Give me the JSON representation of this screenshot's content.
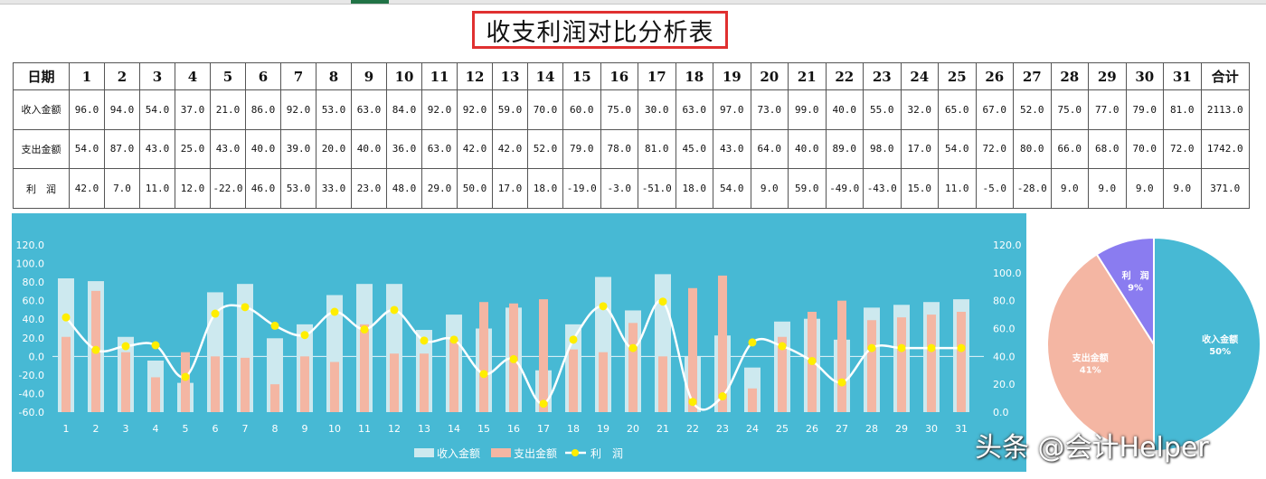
{
  "title": "收支利润对比分析表",
  "table": {
    "header_label": "日期",
    "days": [
      "1",
      "2",
      "3",
      "4",
      "5",
      "6",
      "7",
      "8",
      "9",
      "10",
      "11",
      "12",
      "13",
      "14",
      "15",
      "16",
      "17",
      "18",
      "19",
      "20",
      "21",
      "22",
      "23",
      "24",
      "25",
      "26",
      "27",
      "28",
      "29",
      "30",
      "31"
    ],
    "total_label": "合计",
    "rows": [
      {
        "label": "收入金额",
        "values": [
          "96.0",
          "94.0",
          "54.0",
          "37.0",
          "21.0",
          "86.0",
          "92.0",
          "53.0",
          "63.0",
          "84.0",
          "92.0",
          "92.0",
          "59.0",
          "70.0",
          "60.0",
          "75.0",
          "30.0",
          "63.0",
          "97.0",
          "73.0",
          "99.0",
          "40.0",
          "55.0",
          "32.0",
          "65.0",
          "67.0",
          "52.0",
          "75.0",
          "77.0",
          "79.0",
          "81.0"
        ],
        "total": "2113.0"
      },
      {
        "label": "支出金额",
        "values": [
          "54.0",
          "87.0",
          "43.0",
          "25.0",
          "43.0",
          "40.0",
          "39.0",
          "20.0",
          "40.0",
          "36.0",
          "63.0",
          "42.0",
          "42.0",
          "52.0",
          "79.0",
          "78.0",
          "81.0",
          "45.0",
          "43.0",
          "64.0",
          "40.0",
          "89.0",
          "98.0",
          "17.0",
          "54.0",
          "72.0",
          "80.0",
          "66.0",
          "68.0",
          "70.0",
          "72.0"
        ],
        "total": "1742.0"
      },
      {
        "label": "利　润",
        "values": [
          "42.0",
          "7.0",
          "11.0",
          "12.0",
          "-22.0",
          "46.0",
          "53.0",
          "33.0",
          "23.0",
          "48.0",
          "29.0",
          "50.0",
          "17.0",
          "18.0",
          "-19.0",
          "-3.0",
          "-51.0",
          "18.0",
          "54.0",
          "9.0",
          "59.0",
          "-49.0",
          "-43.0",
          "15.0",
          "11.0",
          "-5.0",
          "-28.0",
          "9.0",
          "9.0",
          "9.0",
          "9.0"
        ],
        "total": "371.0"
      }
    ]
  },
  "chart_data": [
    {
      "type": "bar",
      "categories": [
        "1",
        "2",
        "3",
        "4",
        "5",
        "6",
        "7",
        "8",
        "9",
        "10",
        "11",
        "12",
        "13",
        "14",
        "15",
        "16",
        "17",
        "18",
        "19",
        "20",
        "21",
        "22",
        "23",
        "24",
        "25",
        "26",
        "27",
        "28",
        "29",
        "30",
        "31"
      ],
      "series": [
        {
          "name": "收入金额",
          "values": [
            96,
            94,
            54,
            37,
            21,
            86,
            92,
            53,
            63,
            84,
            92,
            92,
            59,
            70,
            60,
            75,
            30,
            63,
            97,
            73,
            99,
            40,
            55,
            32,
            65,
            67,
            52,
            75,
            77,
            79,
            81
          ],
          "axis": "right",
          "color": "#cde9ef"
        },
        {
          "name": "支出金额",
          "values": [
            54,
            87,
            43,
            25,
            43,
            40,
            39,
            20,
            40,
            36,
            63,
            42,
            42,
            52,
            79,
            78,
            81,
            45,
            43,
            64,
            40,
            89,
            98,
            17,
            54,
            72,
            80,
            66,
            68,
            70,
            72
          ],
          "axis": "right",
          "color": "#f4b6a3"
        },
        {
          "name": "利　润",
          "values": [
            42,
            7,
            11,
            12,
            -22,
            46,
            53,
            33,
            23,
            48,
            29,
            50,
            17,
            18,
            -19,
            -3,
            -51,
            18,
            54,
            9,
            59,
            -49,
            -43,
            15,
            11,
            -5,
            -28,
            9,
            9,
            9,
            9
          ],
          "axis": "left",
          "type": "line",
          "color": "#ffffff",
          "marker_color": "#ffee00"
        }
      ],
      "left_ticks": [
        "120.0",
        "100.0",
        "80.0",
        "60.0",
        "40.0",
        "20.0",
        "0.0",
        "-20.0",
        "-40.0",
        "-60.0"
      ],
      "right_ticks": [
        "120.0",
        "100.0",
        "80.0",
        "60.0",
        "40.0",
        "20.0",
        "0.0"
      ],
      "ylim_left": [
        -60,
        120
      ],
      "ylim_right": [
        0,
        120
      ],
      "legend": "bottom",
      "background": "#47b9d4"
    },
    {
      "type": "pie",
      "slices": [
        {
          "label": "收入金额",
          "pct": "50%",
          "value": 50,
          "color": "#47b9d4"
        },
        {
          "label": "支出金额",
          "pct": "41%",
          "value": 41,
          "color": "#f4b6a3"
        },
        {
          "label": "利　润",
          "pct": "9%",
          "value": 9,
          "color": "#8a7cf0"
        }
      ]
    }
  ],
  "watermark": "头条 @会计Helper"
}
